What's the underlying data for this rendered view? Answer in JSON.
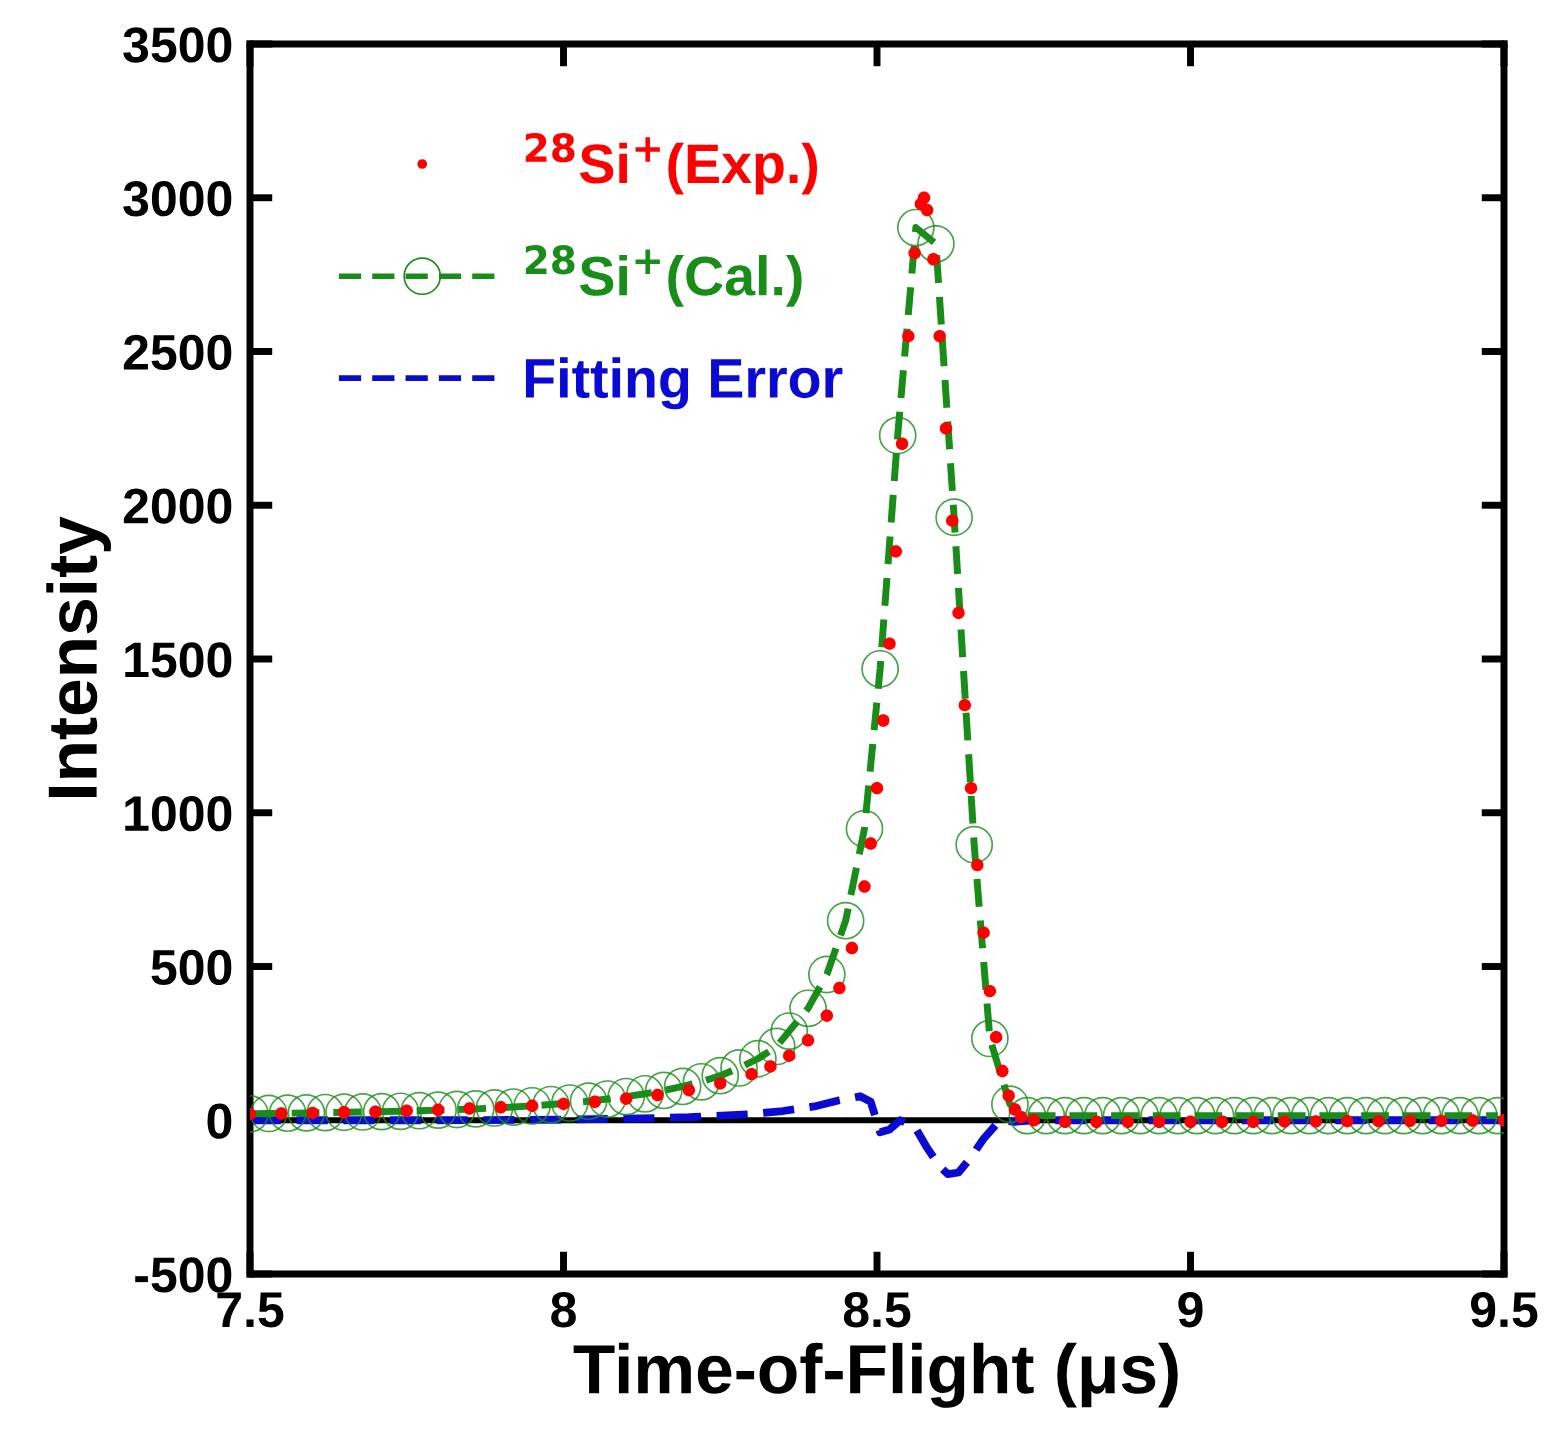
{
  "chart_data": {
    "type": "line",
    "xlabel": "Time-of-Flight (μs)",
    "ylabel": "Intensity",
    "xlim": [
      7.5,
      9.5
    ],
    "xticks": [
      7.5,
      8,
      8.5,
      9,
      9.5
    ],
    "ylim": [
      -500,
      3500
    ],
    "yticks": [
      -500,
      0,
      500,
      1000,
      1500,
      2000,
      2500,
      3000,
      3500
    ],
    "grid": false,
    "legend": "top left",
    "ref_lines": [
      {
        "axis": "y",
        "value": 0,
        "color": "#000000",
        "line_style": "solid"
      }
    ],
    "series": [
      {
        "name": "$^{28}$Si$^{+}$(Exp.)",
        "type": "scatter",
        "marker": "circle",
        "color": "#ff0000",
        "x": [
          7.5,
          7.55,
          7.6,
          7.65,
          7.7,
          7.75,
          7.8,
          7.85,
          7.9,
          7.95,
          8.0,
          8.05,
          8.1,
          8.15,
          8.2,
          8.25,
          8.3,
          8.33,
          8.36,
          8.39,
          8.42,
          8.44,
          8.46,
          8.48,
          8.49,
          8.5,
          8.51,
          8.52,
          8.53,
          8.54,
          8.55,
          8.56,
          8.57,
          8.575,
          8.58,
          8.59,
          8.6,
          8.61,
          8.62,
          8.63,
          8.64,
          8.65,
          8.66,
          8.67,
          8.68,
          8.69,
          8.7,
          8.71,
          8.72,
          8.73,
          8.75,
          8.8,
          8.85,
          8.9,
          8.95,
          9.0,
          9.05,
          9.1,
          9.15,
          9.2,
          9.25,
          9.3,
          9.35,
          9.4,
          9.45,
          9.5
        ],
        "values": [
          20,
          22,
          24,
          26,
          28,
          31,
          34,
          38,
          42,
          47,
          53,
          60,
          70,
          82,
          98,
          120,
          150,
          175,
          210,
          260,
          340,
          430,
          560,
          760,
          900,
          1080,
          1300,
          1550,
          1850,
          2200,
          2550,
          2820,
          2980,
          3000,
          2960,
          2800,
          2550,
          2250,
          1950,
          1650,
          1350,
          1080,
          830,
          610,
          420,
          270,
          160,
          80,
          35,
          10,
          0,
          -5,
          -5,
          -5,
          -5,
          -5,
          -5,
          -5,
          -4,
          -4,
          -3,
          -3,
          -2,
          -2,
          -1,
          0
        ]
      },
      {
        "name": "$^{28}$Si$^{+}$(Cal.)",
        "marker": "circle",
        "line_style": "dashed",
        "color": "#1a8c1a",
        "x": [
          7.5,
          7.53,
          7.56,
          7.59,
          7.62,
          7.65,
          7.68,
          7.71,
          7.74,
          7.77,
          7.8,
          7.83,
          7.86,
          7.89,
          7.92,
          7.95,
          7.98,
          8.01,
          8.04,
          8.07,
          8.1,
          8.13,
          8.16,
          8.19,
          8.22,
          8.25,
          8.28,
          8.31,
          8.34,
          8.36,
          8.39,
          8.42,
          8.45,
          8.48,
          8.505,
          8.533,
          8.562,
          8.594,
          8.623,
          8.655,
          8.68,
          8.712,
          8.74,
          8.77,
          8.8,
          8.83,
          8.86,
          8.89,
          8.92,
          8.95,
          8.98,
          9.01,
          9.04,
          9.07,
          9.1,
          9.13,
          9.16,
          9.19,
          9.22,
          9.25,
          9.28,
          9.31,
          9.34,
          9.37,
          9.4,
          9.43,
          9.46,
          9.49
        ],
        "values": [
          21,
          22,
          23,
          24,
          25,
          26,
          27,
          28,
          29,
          31,
          33,
          35,
          37,
          40,
          43,
          47,
          51,
          56,
          62,
          69,
          77,
          86,
          97,
          110,
          125,
          145,
          170,
          200,
          240,
          290,
          364,
          474,
          649,
          948,
          1468,
          2227,
          2903,
          2850,
          1961,
          896,
          266,
          52,
          15,
          15,
          15,
          15,
          15,
          15,
          15,
          15,
          15,
          15,
          15,
          15,
          15,
          15,
          15,
          15,
          15,
          15,
          15,
          15,
          15,
          15,
          15,
          15,
          15,
          15
        ]
      },
      {
        "name": "Fitting Error",
        "marker": "none",
        "line_style": "dashed",
        "color": "#0a0ad2",
        "x": [
          7.5,
          7.8,
          8.0,
          8.1,
          8.2,
          8.3,
          8.35,
          8.4,
          8.44,
          8.473,
          8.49,
          8.505,
          8.52,
          8.537,
          8.56,
          8.58,
          8.6,
          8.613,
          8.63,
          8.65,
          8.67,
          8.696,
          8.72,
          8.75,
          9.0,
          9.5
        ],
        "values": [
          0,
          0,
          2,
          5,
          10,
          20,
          30,
          45,
          65,
          78,
          60,
          -39,
          -30,
          0,
          -20,
          -90,
          -150,
          -175,
          -170,
          -120,
          -60,
          0,
          -5,
          0,
          0,
          0
        ]
      }
    ]
  }
}
